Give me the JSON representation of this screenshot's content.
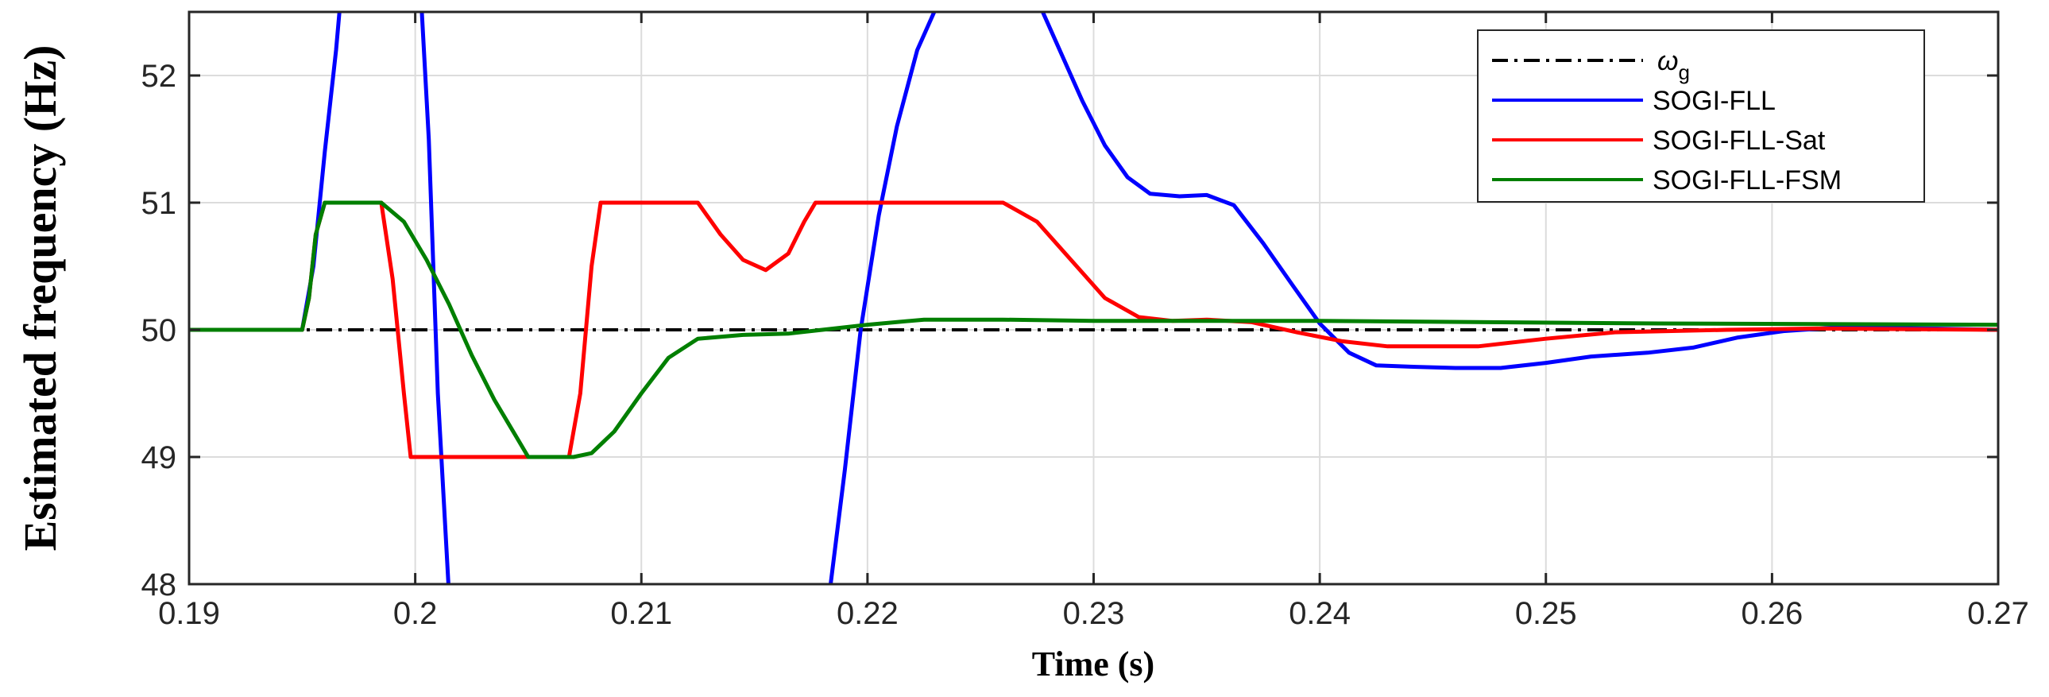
{
  "chart_data": {
    "type": "line",
    "xlabel": "Time (s)",
    "ylabel": "Estimated frequency (Hz)",
    "xlim": [
      0.19,
      0.27
    ],
    "ylim": [
      48,
      52.5
    ],
    "xticks": [
      0.19,
      0.2,
      0.21,
      0.22,
      0.23,
      0.24,
      0.25,
      0.26,
      0.27
    ],
    "xtick_labels": [
      "0.19",
      "0.2",
      "0.21",
      "0.22",
      "0.23",
      "0.24",
      "0.25",
      "0.26",
      "0.27"
    ],
    "yticks": [
      48,
      49,
      50,
      51,
      52
    ],
    "ytick_labels": [
      "48",
      "49",
      "50",
      "51",
      "52"
    ],
    "grid": true,
    "legend_position": "top-right",
    "series": [
      {
        "name": "ω",
        "name_sub": "g",
        "color": "#000000",
        "style": "dashdot",
        "points": [
          [
            0.19,
            50
          ],
          [
            0.27,
            50
          ]
        ]
      },
      {
        "name": "SOGI-FLL",
        "color": "#0000ff",
        "style": "solid",
        "points": [
          [
            0.19,
            50
          ],
          [
            0.195,
            50
          ],
          [
            0.1955,
            50.5
          ],
          [
            0.196,
            51.4
          ],
          [
            0.1965,
            52.2
          ],
          [
            0.1968,
            52.8
          ],
          [
            0.2002,
            52.8
          ],
          [
            0.2006,
            51.5
          ],
          [
            0.201,
            49.5
          ],
          [
            0.2015,
            47.9
          ],
          [
            0.2183,
            47.9
          ],
          [
            0.219,
            48.9
          ],
          [
            0.2197,
            50.0
          ],
          [
            0.2205,
            50.9
          ],
          [
            0.2213,
            51.6
          ],
          [
            0.2222,
            52.2
          ],
          [
            0.2232,
            52.6
          ],
          [
            0.2275,
            52.6
          ],
          [
            0.2285,
            52.2
          ],
          [
            0.2295,
            51.8
          ],
          [
            0.2305,
            51.45
          ],
          [
            0.2315,
            51.2
          ],
          [
            0.2325,
            51.07
          ],
          [
            0.2338,
            51.05
          ],
          [
            0.235,
            51.06
          ],
          [
            0.2362,
            50.98
          ],
          [
            0.2375,
            50.68
          ],
          [
            0.2388,
            50.35
          ],
          [
            0.24,
            50.05
          ],
          [
            0.2413,
            49.82
          ],
          [
            0.2425,
            49.72
          ],
          [
            0.244,
            49.71
          ],
          [
            0.246,
            49.7
          ],
          [
            0.248,
            49.7
          ],
          [
            0.25,
            49.74
          ],
          [
            0.252,
            49.79
          ],
          [
            0.2545,
            49.82
          ],
          [
            0.2565,
            49.86
          ],
          [
            0.2585,
            49.94
          ],
          [
            0.2605,
            49.99
          ],
          [
            0.263,
            50.02
          ],
          [
            0.267,
            50.01
          ],
          [
            0.27,
            50.0
          ]
        ]
      },
      {
        "name": "SOGI-FLL-Sat",
        "color": "#ff0000",
        "style": "solid",
        "points": [
          [
            0.19,
            50
          ],
          [
            0.195,
            50
          ],
          [
            0.1953,
            50.25
          ],
          [
            0.1956,
            50.75
          ],
          [
            0.196,
            51
          ],
          [
            0.1985,
            51
          ],
          [
            0.199,
            50.4
          ],
          [
            0.1995,
            49.5
          ],
          [
            0.1998,
            49
          ],
          [
            0.2068,
            49
          ],
          [
            0.2073,
            49.5
          ],
          [
            0.2078,
            50.5
          ],
          [
            0.2082,
            51
          ],
          [
            0.2125,
            51
          ],
          [
            0.2135,
            50.75
          ],
          [
            0.2145,
            50.55
          ],
          [
            0.2155,
            50.47
          ],
          [
            0.2165,
            50.6
          ],
          [
            0.2172,
            50.85
          ],
          [
            0.2177,
            51
          ],
          [
            0.226,
            51
          ],
          [
            0.2275,
            50.85
          ],
          [
            0.229,
            50.55
          ],
          [
            0.2305,
            50.25
          ],
          [
            0.232,
            50.1
          ],
          [
            0.2335,
            50.07
          ],
          [
            0.235,
            50.08
          ],
          [
            0.237,
            50.06
          ],
          [
            0.239,
            49.98
          ],
          [
            0.241,
            49.91
          ],
          [
            0.243,
            49.87
          ],
          [
            0.247,
            49.87
          ],
          [
            0.25,
            49.93
          ],
          [
            0.253,
            49.98
          ],
          [
            0.258,
            50.0
          ],
          [
            0.262,
            50.01
          ],
          [
            0.27,
            50.0
          ]
        ]
      },
      {
        "name": "SOGI-FLL-FSM",
        "color": "#007f00",
        "style": "solid",
        "points": [
          [
            0.19,
            50
          ],
          [
            0.195,
            50
          ],
          [
            0.1953,
            50.25
          ],
          [
            0.1956,
            50.75
          ],
          [
            0.196,
            51
          ],
          [
            0.1985,
            51
          ],
          [
            0.1995,
            50.85
          ],
          [
            0.2005,
            50.55
          ],
          [
            0.2015,
            50.2
          ],
          [
            0.2025,
            49.8
          ],
          [
            0.2035,
            49.45
          ],
          [
            0.2045,
            49.15
          ],
          [
            0.205,
            49
          ],
          [
            0.207,
            49
          ],
          [
            0.2078,
            49.03
          ],
          [
            0.2088,
            49.2
          ],
          [
            0.21,
            49.5
          ],
          [
            0.2112,
            49.78
          ],
          [
            0.2125,
            49.93
          ],
          [
            0.2145,
            49.96
          ],
          [
            0.2165,
            49.97
          ],
          [
            0.218,
            50.0
          ],
          [
            0.22,
            50.04
          ],
          [
            0.2225,
            50.08
          ],
          [
            0.226,
            50.08
          ],
          [
            0.23,
            50.07
          ],
          [
            0.24,
            50.07
          ],
          [
            0.255,
            50.05
          ],
          [
            0.27,
            50.04
          ]
        ]
      }
    ]
  }
}
